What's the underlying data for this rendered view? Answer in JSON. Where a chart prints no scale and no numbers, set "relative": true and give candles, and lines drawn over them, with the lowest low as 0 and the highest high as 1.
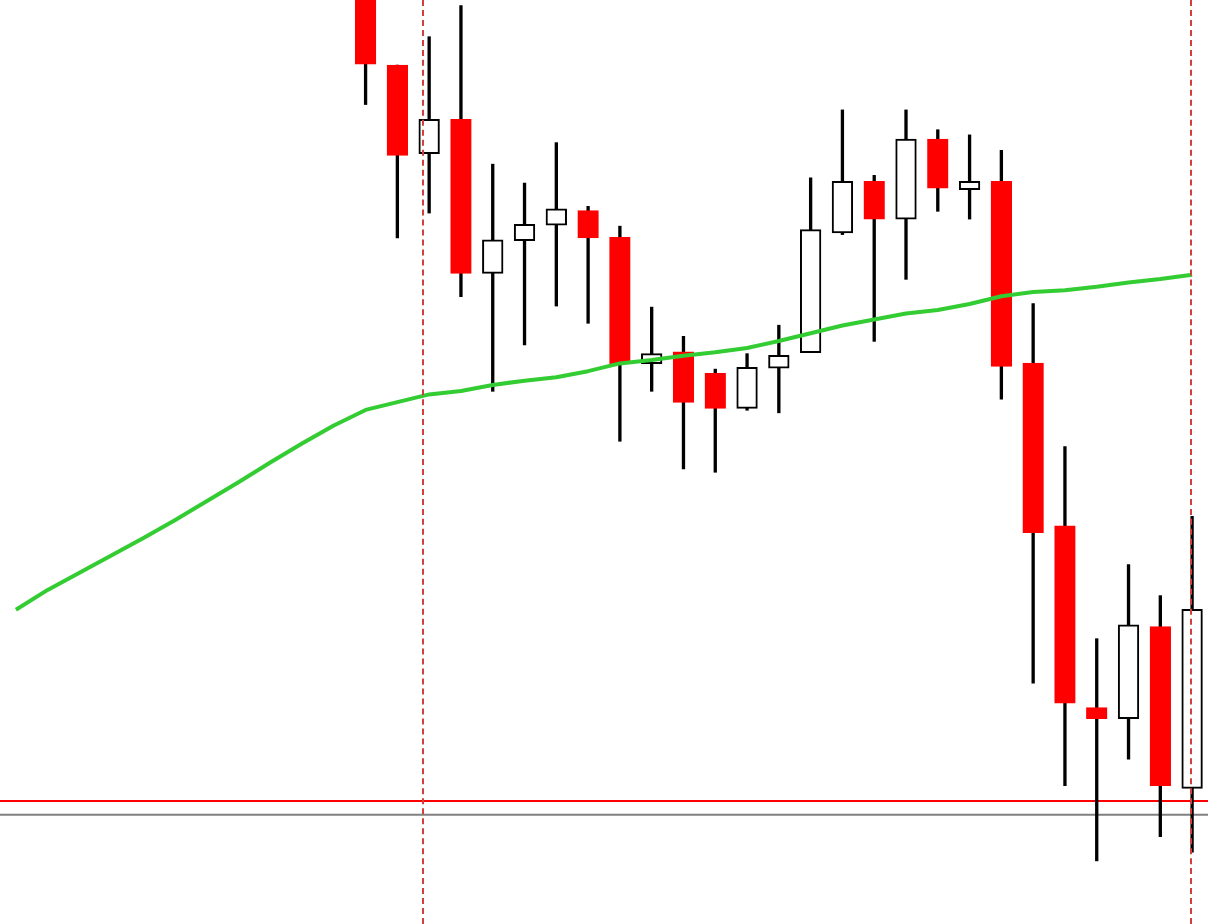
{
  "chart_data": {
    "type": "candlestick",
    "relative": true,
    "categories": [
      null,
      null,
      null,
      null,
      null,
      null,
      null,
      null,
      null,
      null,
      null,
      null,
      null,
      null,
      null,
      null,
      null,
      null,
      null,
      null,
      null,
      null,
      null,
      null,
      null,
      null,
      null,
      null,
      null,
      null,
      null,
      null,
      null,
      null,
      null,
      null,
      null,
      null
    ],
    "ohlc": [
      null,
      null,
      null,
      null,
      null,
      null,
      null,
      null,
      null,
      null,
      null,
      [
        1,
        1,
        0.879,
        0.926
      ],
      [
        0.924,
        0.924,
        0.724,
        0.82
      ],
      [
        0.822,
        0.957,
        0.753,
        0.861
      ],
      [
        0.861,
        0.993,
        0.656,
        0.683
      ],
      [
        0.683,
        0.809,
        0.546,
        0.721
      ],
      [
        0.721,
        0.787,
        0.6,
        0.739
      ],
      [
        0.739,
        0.834,
        0.645,
        0.757
      ],
      [
        0.755,
        0.76,
        0.625,
        0.724
      ],
      [
        0.724,
        0.737,
        0.488,
        0.578
      ],
      [
        0.578,
        0.643,
        0.546,
        0.589
      ],
      [
        0.591,
        0.609,
        0.456,
        0.533
      ],
      [
        0.566,
        0.571,
        0.452,
        0.526
      ],
      [
        0.526,
        0.589,
        0.524,
        0.573
      ],
      [
        0.573,
        0.622,
        0.521,
        0.587
      ],
      [
        0.591,
        0.793,
        0.591,
        0.733
      ],
      [
        0.73,
        0.872,
        0.728,
        0.789
      ],
      [
        0.789,
        0.796,
        0.604,
        0.746
      ],
      [
        0.746,
        0.872,
        0.676,
        0.838
      ],
      [
        0.838,
        0.849,
        0.755,
        0.782
      ],
      [
        0.78,
        0.843,
        0.746,
        0.789
      ],
      [
        0.789,
        0.825,
        0.537,
        0.575
      ],
      [
        0.578,
        0.647,
        0.207,
        0.382
      ],
      [
        0.389,
        0.481,
        0.088,
        0.184
      ],
      [
        0.178,
        0.258,
        0,
        0.166
      ],
      [
        0.166,
        0.344,
        0.119,
        0.274
      ],
      [
        0.272,
        0.308,
        0.029,
        0.088
      ],
      [
        0.085,
        0.4,
        0.011,
        0.292
      ]
    ],
    "colors": [
      null,
      null,
      null,
      null,
      null,
      null,
      null,
      null,
      null,
      null,
      null,
      "#ff0000",
      "#ff0000",
      "#000000",
      "#ff0000",
      "#000000",
      "#000000",
      "#000000",
      "#ff0000",
      "#ff0000",
      "#000000",
      "#ff0000",
      "#ff0000",
      "#000000",
      "#000000",
      "#000000",
      "#000000",
      "#ff0000",
      "#000000",
      "#ff0000",
      "#000000",
      "#ff0000",
      "#ff0000",
      "#ff0000",
      "#ff0000",
      "#000000",
      "#ff0000",
      "#000000"
    ],
    "series": [
      {
        "type": "line",
        "color": "#33cc33",
        "values": [
          0.292,
          0.315,
          0.335,
          0.355,
          0.375,
          0.396,
          0.418,
          0.44,
          0.463,
          0.485,
          0.506,
          0.524,
          0.533,
          0.542,
          0.546,
          0.553,
          0.558,
          0.562,
          0.569,
          0.578,
          0.582,
          0.587,
          0.591,
          0.596,
          0.604,
          0.613,
          0.622,
          0.629,
          0.636,
          0.64,
          0.647,
          0.656,
          0.661,
          0.663,
          0.667,
          0.672,
          0.676,
          0.681
        ]
      }
    ],
    "ref_lines": [
      {
        "axis": "y",
        "value": 0.07,
        "color": "#ff0000"
      },
      {
        "axis": "y",
        "value": 0.054,
        "color": "#808080"
      }
    ],
    "grid": false,
    "legend": false
  }
}
